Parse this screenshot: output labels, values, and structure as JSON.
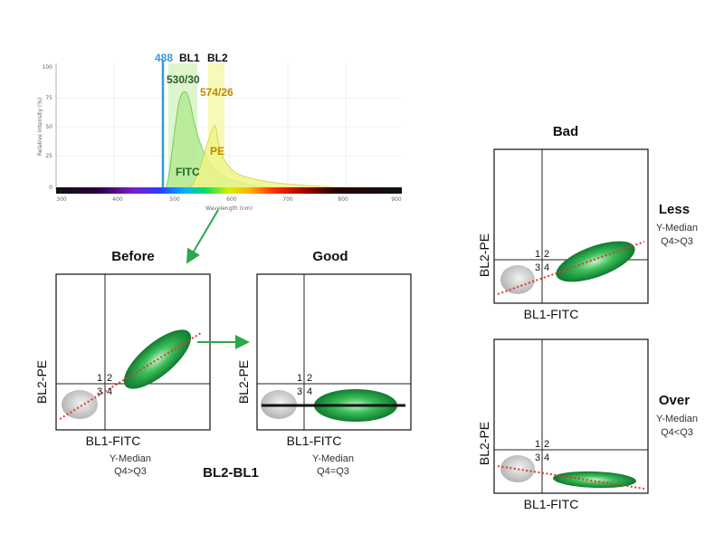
{
  "spectrum": {
    "y_axis_label": "Relative Intensity (%)",
    "x_axis_label": "Wavelength (nm)",
    "y_ticks": [
      "100",
      "75",
      "50",
      "25",
      "0"
    ],
    "x_ticks": [
      "300",
      "400",
      "500",
      "600",
      "700",
      "800",
      "900"
    ],
    "laser_label": "488",
    "bl1_label": "BL1",
    "bl2_label": "BL2",
    "bl1_filter": "530/30",
    "bl2_filter": "574/26",
    "fitc_label": "FITC",
    "pe_label": "PE",
    "colors": {
      "laser": "#3399dd",
      "fitc_fill": "#b8ea98",
      "pe_fill": "#eef58a",
      "bl1_band": "#d8f3c4",
      "bl2_band": "#f7f8b0",
      "pe_text": "#c08a00"
    }
  },
  "plots": {
    "before": {
      "title": "Before",
      "y_label": "BL2-PE",
      "x_label": "BL1-FITC",
      "q1": "1",
      "q2": "2",
      "q3": "3",
      "q4": "4",
      "median_label": "Y-Median",
      "median_cmp": "Q4>Q3"
    },
    "good": {
      "title": "Good",
      "y_label": "BL2-PE",
      "x_label": "BL1-FITC",
      "q1": "1",
      "q2": "2",
      "q3": "3",
      "q4": "4",
      "median_label": "Y-Median",
      "median_cmp": "Q4=Q3"
    },
    "bad_less": {
      "y_label": "BL2-PE",
      "x_label": "BL1-FITC",
      "q1": "1",
      "q2": "2",
      "q3": "3",
      "q4": "4",
      "side_title": "Less",
      "median_label": "Y-Median",
      "median_cmp": "Q4>Q3"
    },
    "bad_over": {
      "y_label": "BL2-PE",
      "x_label": "BL1-FITC",
      "q1": "1",
      "q2": "2",
      "q3": "3",
      "q4": "4",
      "side_title": "Over",
      "median_label": "Y-Median",
      "median_cmp": "Q4<Q3"
    }
  },
  "bad_title": "Bad",
  "compensation_label": "BL2-BL1",
  "colors": {
    "population_green": "#2aa84a",
    "population_dark": "#0f7a30",
    "negative_gray": "#c8c8c8",
    "arrow_green": "#2aa84a",
    "trend_red": "#e0392b"
  }
}
